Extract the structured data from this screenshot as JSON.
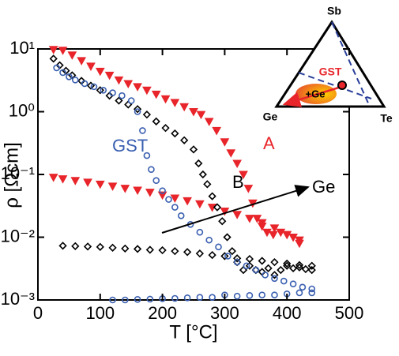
{
  "chart_data": {
    "type": "scatter",
    "xlabel": "T [°C]",
    "ylabel": "ρ [Ωcm]",
    "xlim": [
      0,
      500
    ],
    "xticks": [
      0,
      100,
      200,
      300,
      400,
      500
    ],
    "ylim": [
      0.001,
      10
    ],
    "log_y": true,
    "yticks": [
      {
        "value": 0.001,
        "label": "10⁻³"
      },
      {
        "value": 0.01,
        "label": "10⁻²"
      },
      {
        "value": 0.1,
        "label": "10⁻¹"
      },
      {
        "value": 1,
        "label": "10⁰"
      },
      {
        "value": 10,
        "label": "10¹"
      }
    ],
    "series": [
      {
        "name": "A",
        "color": "#e8252a",
        "marker": "triangle-down",
        "x": [
          25,
          40,
          55,
          70,
          85,
          100,
          115,
          130,
          145,
          160,
          175,
          190,
          205,
          220,
          235,
          250,
          262,
          275,
          287,
          300,
          310,
          320,
          330,
          338,
          345,
          352,
          360,
          368,
          378,
          390,
          400,
          410,
          420,
          420,
          400,
          380,
          360,
          340,
          320,
          300,
          280,
          260,
          240,
          220,
          200,
          180,
          160,
          140,
          120,
          100,
          80,
          60,
          40,
          25
        ],
        "values": [
          9.8,
          9.5,
          8,
          6.5,
          5.3,
          4.4,
          3.8,
          3.2,
          2.8,
          2.5,
          2.2,
          1.9,
          1.6,
          1.4,
          1.2,
          1.0,
          0.9,
          0.7,
          0.5,
          0.33,
          0.22,
          0.15,
          0.1,
          0.06,
          0.035,
          0.02,
          0.015,
          0.012,
          0.011,
          0.012,
          0.011,
          0.01,
          0.009,
          0.008,
          0.011,
          0.014,
          0.017,
          0.02,
          0.023,
          0.026,
          0.03,
          0.034,
          0.038,
          0.042,
          0.047,
          0.052,
          0.056,
          0.06,
          0.065,
          0.07,
          0.075,
          0.08,
          0.085,
          0.09
        ]
      },
      {
        "name": "B",
        "color": "#000000",
        "marker": "diamond",
        "x": [
          25,
          35,
          45,
          55,
          70,
          85,
          100,
          115,
          130,
          145,
          160,
          175,
          190,
          205,
          220,
          235,
          250,
          258,
          265,
          272,
          280,
          288,
          296,
          304,
          312,
          320,
          330,
          340,
          350,
          360,
          370,
          380,
          390,
          400,
          410,
          420,
          430,
          440,
          440,
          420,
          400,
          380,
          360,
          340,
          320,
          300,
          280,
          260,
          240,
          220,
          200,
          180,
          160,
          140,
          120,
          100,
          80,
          60,
          40
        ],
        "values": [
          7,
          5.5,
          4.5,
          3.8,
          3.1,
          2.6,
          2.2,
          1.8,
          1.5,
          1.3,
          1.1,
          0.9,
          0.7,
          0.55,
          0.45,
          0.35,
          0.25,
          0.15,
          0.1,
          0.07,
          0.045,
          0.03,
          0.018,
          0.01,
          0.006,
          0.004,
          0.003,
          0.0035,
          0.003,
          0.0028,
          0.0032,
          0.0025,
          0.003,
          0.0035,
          0.0032,
          0.0033,
          0.0031,
          0.003,
          0.0035,
          0.0036,
          0.0038,
          0.004,
          0.0042,
          0.0045,
          0.0046,
          0.005,
          0.0052,
          0.0055,
          0.0058,
          0.006,
          0.0062,
          0.0063,
          0.0065,
          0.0066,
          0.0068,
          0.007,
          0.0071,
          0.0072,
          0.0073
        ]
      },
      {
        "name": "GST",
        "color": "#3a5fb0",
        "marker": "circle",
        "x": [
          30,
          40,
          50,
          60,
          75,
          90,
          105,
          120,
          135,
          150,
          160,
          168,
          175,
          182,
          190,
          200,
          210,
          220,
          230,
          245,
          260,
          275,
          290,
          305,
          320,
          335,
          350,
          365,
          380,
          395,
          410,
          425,
          440,
          440,
          420,
          400,
          380,
          360,
          340,
          320,
          300,
          280,
          260,
          240,
          220,
          200,
          180,
          160,
          140,
          120
        ],
        "values": [
          5,
          4.2,
          3.6,
          3.2,
          2.8,
          2.5,
          2.2,
          2,
          1.8,
          1.5,
          1,
          0.5,
          0.2,
          0.12,
          0.08,
          0.055,
          0.04,
          0.03,
          0.022,
          0.016,
          0.012,
          0.009,
          0.007,
          0.005,
          0.004,
          0.0035,
          0.003,
          0.0025,
          0.0022,
          0.002,
          0.0018,
          0.0016,
          0.0015,
          0.0013,
          0.0013,
          0.00125,
          0.0012,
          0.0012,
          0.00118,
          0.00115,
          0.0012,
          0.0011,
          0.0011,
          0.00108,
          0.00106,
          0.00105,
          0.00103,
          0.00102,
          0.001,
          0.001
        ]
      }
    ],
    "arrow_label": "Ge",
    "inset": {
      "vertices": [
        "Sb",
        "Ge",
        "Te"
      ],
      "point": "GST",
      "blob": "+Ge"
    }
  }
}
